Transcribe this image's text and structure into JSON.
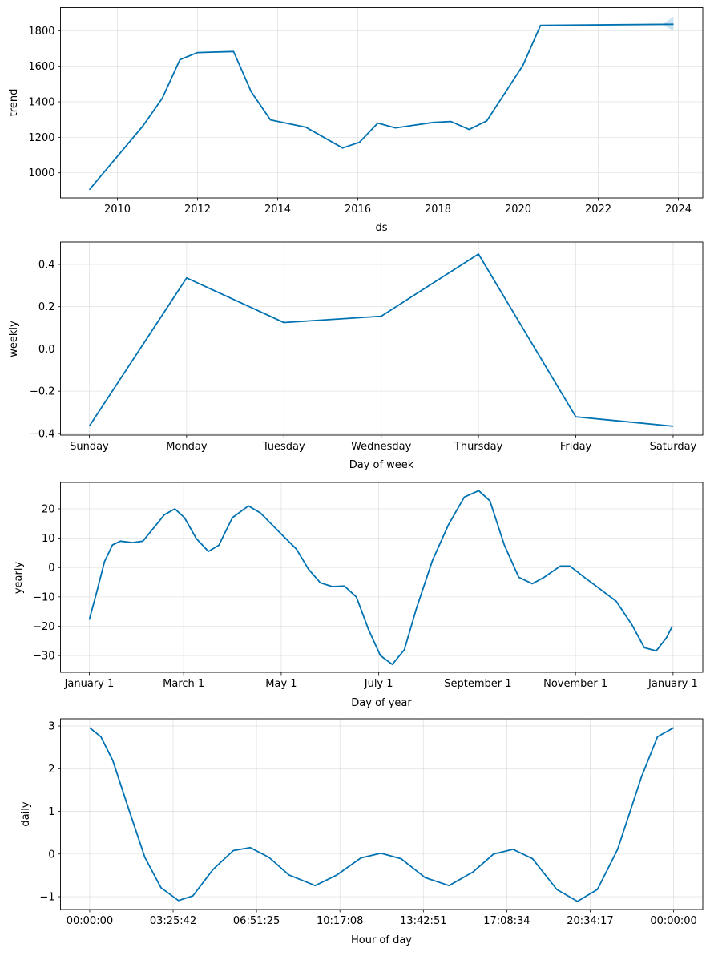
{
  "chart_data": [
    {
      "type": "line",
      "xlabel": "ds",
      "ylabel": "trend",
      "xlim": [
        2008.58,
        2024.61
      ],
      "ylim": [
        859,
        1930
      ],
      "grid": true,
      "line_color": "#0072B2",
      "band_color": "#0072B2",
      "xticks": [
        2010,
        2012,
        2014,
        2016,
        2018,
        2020,
        2022,
        2024
      ],
      "xtick_labels": [
        "2010",
        "2012",
        "2014",
        "2016",
        "2018",
        "2020",
        "2022",
        "2024"
      ],
      "yticks": [
        1000,
        1200,
        1400,
        1600,
        1800
      ],
      "ytick_labels": [
        "1000",
        "1200",
        "1400",
        "1600",
        "1800"
      ],
      "x": [
        2009.3,
        2010.64,
        2011.12,
        2011.56,
        2012.0,
        2012.9,
        2013.34,
        2013.82,
        2014.7,
        2015.62,
        2016.04,
        2016.5,
        2016.94,
        2017.88,
        2018.32,
        2018.78,
        2019.22,
        2020.12,
        2020.56,
        2023.88
      ],
      "y": [
        905,
        1265,
        1420,
        1637,
        1677,
        1683,
        1456,
        1298,
        1257,
        1140,
        1172,
        1280,
        1253,
        1284,
        1289,
        1244,
        1293,
        1605,
        1830,
        1836
      ],
      "uncertainty": {
        "x": [
          2023.6,
          2023.88
        ],
        "lower": [
          1834,
          1800
        ],
        "upper": [
          1834,
          1880
        ]
      }
    },
    {
      "type": "line",
      "xlabel": "Day of week",
      "ylabel": "weekly",
      "xlim": [
        -0.296,
        6.305
      ],
      "ylim": [
        -0.408,
        0.506
      ],
      "grid": true,
      "line_color": "#0072B2",
      "categories": [
        "Sunday",
        "Monday",
        "Tuesday",
        "Wednesday",
        "Thursday",
        "Friday",
        "Saturday"
      ],
      "yticks": [
        -0.4,
        -0.2,
        0.0,
        0.2,
        0.4
      ],
      "ytick_labels": [
        "−0.4",
        "−0.2",
        "0.0",
        "0.2",
        "0.4"
      ],
      "values": [
        -0.366,
        0.336,
        0.125,
        0.155,
        0.449,
        -0.321,
        -0.366
      ]
    },
    {
      "type": "line",
      "xlabel": "Day of year",
      "ylabel": "yearly",
      "xlim": [
        -18,
        383.6
      ],
      "ylim": [
        -35.7,
        29.0
      ],
      "grid": true,
      "line_color": "#0072B2",
      "xticks": [
        0,
        59,
        120,
        181,
        243,
        304,
        365
      ],
      "xtick_labels": [
        "January 1",
        "March 1",
        "May 1",
        "July 1",
        "September 1",
        "November 1",
        "January 1"
      ],
      "yticks": [
        -30,
        -20,
        -10,
        0,
        10,
        20
      ],
      "ytick_labels": [
        "−30",
        "−20",
        "−10",
        "0",
        "10",
        "20"
      ],
      "x": [
        0,
        4.5,
        9.5,
        14.5,
        19.5,
        27,
        33.5,
        39.5,
        47,
        53.5,
        59.5,
        67,
        74.5,
        81,
        89.5,
        99.5,
        107,
        119.5,
        129.5,
        137,
        144.5,
        152,
        159.5,
        167,
        174.5,
        182,
        189.5,
        197,
        204.5,
        214.5,
        224.5,
        234.5,
        243.5,
        250.5,
        259.5,
        268.5,
        277,
        284.5,
        294.5,
        300.5,
        309.5,
        319.5,
        329.5,
        339.5,
        347,
        354.5,
        361,
        364.5
      ],
      "y": [
        -17.8,
        -8.7,
        2,
        7.7,
        9,
        8.5,
        9,
        13,
        18,
        20,
        17,
        9.8,
        5.5,
        7.6,
        17,
        21,
        18.6,
        11.7,
        6.3,
        -0.5,
        -5.2,
        -6.5,
        -6.3,
        -10,
        -21,
        -30,
        -33,
        -28,
        -14,
        2.3,
        14.5,
        24,
        26.2,
        22.7,
        7.7,
        -3.3,
        -5.5,
        -3.3,
        0.5,
        0.5,
        -3.3,
        -7.4,
        -11.5,
        -19.7,
        -27.3,
        -28.4,
        -23.8,
        -20
      ]
    },
    {
      "type": "line",
      "xlabel": "Hour of day",
      "ylabel": "daily",
      "xlim": [
        -1.2,
        25.2
      ],
      "ylim": [
        -1.3,
        3.17
      ],
      "grid": true,
      "line_color": "#0072B2",
      "xticks": [
        0,
        3.4286,
        6.8571,
        10.2857,
        13.7143,
        17.1429,
        20.5714,
        24
      ],
      "xtick_labels": [
        "00:00:00",
        "03:25:42",
        "06:51:25",
        "10:17:08",
        "13:42:51",
        "17:08:34",
        "20:34:17",
        "00:00:00"
      ],
      "yticks": [
        -1,
        0,
        1,
        2,
        3
      ],
      "ytick_labels": [
        "−1",
        "0",
        "1",
        "2",
        "3"
      ],
      "x": [
        0,
        0.46,
        0.95,
        1.6,
        2.27,
        2.93,
        3.65,
        4.24,
        5.07,
        5.9,
        6.6,
        7.37,
        8.19,
        9.27,
        10.16,
        11.15,
        11.97,
        12.8,
        13.78,
        14.77,
        15.76,
        16.6,
        17.4,
        18.2,
        19.2,
        20.05,
        20.87,
        21.7,
        22.68,
        23.34,
        24
      ],
      "y": [
        2.96,
        2.75,
        2.19,
        1.06,
        -0.08,
        -0.79,
        -1.09,
        -0.98,
        -0.36,
        0.08,
        0.15,
        -0.08,
        -0.49,
        -0.74,
        -0.49,
        -0.09,
        0.02,
        -0.11,
        -0.55,
        -0.74,
        -0.42,
        0,
        0.11,
        -0.11,
        -0.83,
        -1.11,
        -0.83,
        0.11,
        1.81,
        2.75,
        2.96
      ]
    }
  ]
}
